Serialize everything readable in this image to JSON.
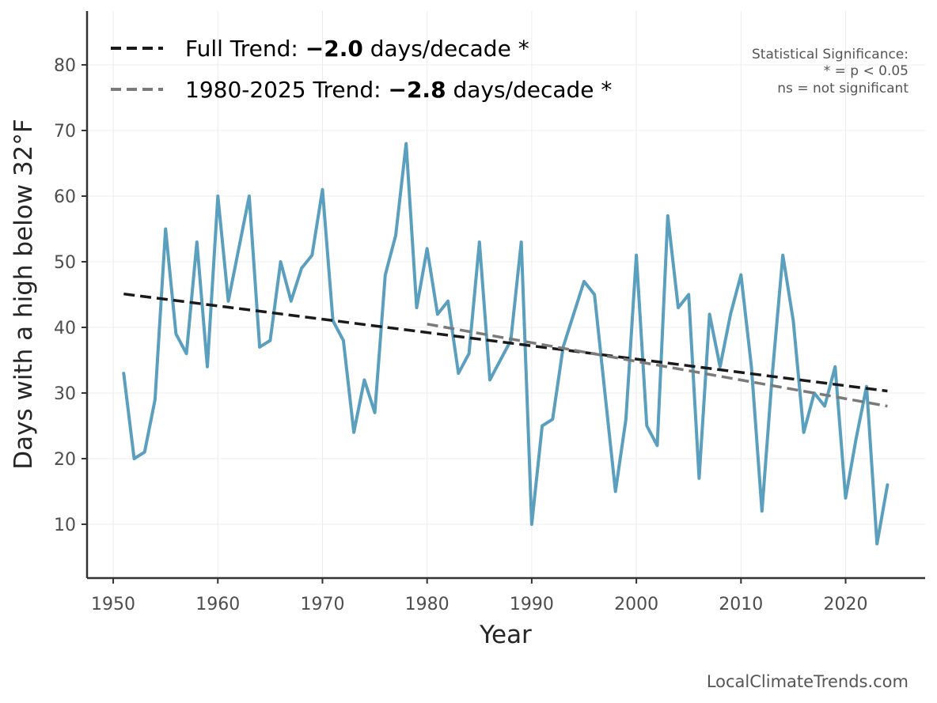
{
  "chart_data": {
    "type": "line",
    "title": "",
    "xlabel": "Year",
    "ylabel": "Days with a high below 32°F",
    "xlim": [
      1947.5,
      2027.6
    ],
    "ylim": [
      1.8,
      88.2
    ],
    "xticks": [
      1950,
      1960,
      1970,
      1980,
      1990,
      2000,
      2010,
      2020
    ],
    "yticks": [
      10,
      20,
      30,
      40,
      50,
      60,
      70,
      80
    ],
    "grid": true,
    "series": [
      {
        "name": "Days with a high below 32°F",
        "color": "#5a9fbd",
        "x": [
          1951,
          1952,
          1953,
          1954,
          1955,
          1956,
          1957,
          1958,
          1959,
          1960,
          1961,
          1962,
          1963,
          1964,
          1965,
          1966,
          1967,
          1968,
          1969,
          1970,
          1971,
          1972,
          1973,
          1974,
          1975,
          1976,
          1977,
          1978,
          1979,
          1980,
          1981,
          1982,
          1983,
          1984,
          1985,
          1986,
          1987,
          1988,
          1989,
          1990,
          1991,
          1992,
          1993,
          1994,
          1995,
          1996,
          1997,
          1998,
          1999,
          2000,
          2001,
          2002,
          2003,
          2004,
          2005,
          2006,
          2007,
          2008,
          2009,
          2010,
          2011,
          2012,
          2013,
          2014,
          2015,
          2016,
          2017,
          2018,
          2019,
          2020,
          2021,
          2022,
          2023,
          2024
        ],
        "values": [
          33,
          20,
          21,
          29,
          55,
          39,
          36,
          53,
          34,
          60,
          44,
          52,
          60,
          37,
          38,
          50,
          44,
          49,
          51,
          61,
          41,
          38,
          24,
          32,
          27,
          48,
          54,
          68,
          43,
          52,
          42,
          44,
          33,
          36,
          53,
          32,
          35,
          38,
          53,
          10,
          25,
          26,
          37,
          42,
          47,
          45,
          30,
          15,
          26,
          51,
          25,
          22,
          57,
          43,
          45,
          17,
          42,
          34,
          42,
          48,
          34,
          12,
          33,
          51,
          41,
          24,
          30,
          28,
          34,
          14,
          23,
          31,
          7,
          16
        ]
      },
      {
        "name": "Full Trend",
        "color": "#1a1a1a",
        "dash": "dashed",
        "x": [
          1951,
          2024
        ],
        "values": [
          45.1,
          30.3
        ]
      },
      {
        "name": "1980-2025 Trend",
        "color": "#7a7a7a",
        "dash": "dashed",
        "x": [
          1980,
          2024
        ],
        "values": [
          40.5,
          28.0
        ]
      }
    ]
  },
  "legend": {
    "full": {
      "prefix": "Full Trend: ",
      "value": "−2.0",
      "suffix": " days/decade *"
    },
    "recent": {
      "prefix": "1980-2025 Trend: ",
      "value": "−2.8",
      "suffix": " days/decade *"
    }
  },
  "significance": {
    "line1": "Statistical Significance:",
    "line2": "* = p < 0.05",
    "line3": "ns = not significant"
  },
  "credit": "LocalClimateTrends.com"
}
